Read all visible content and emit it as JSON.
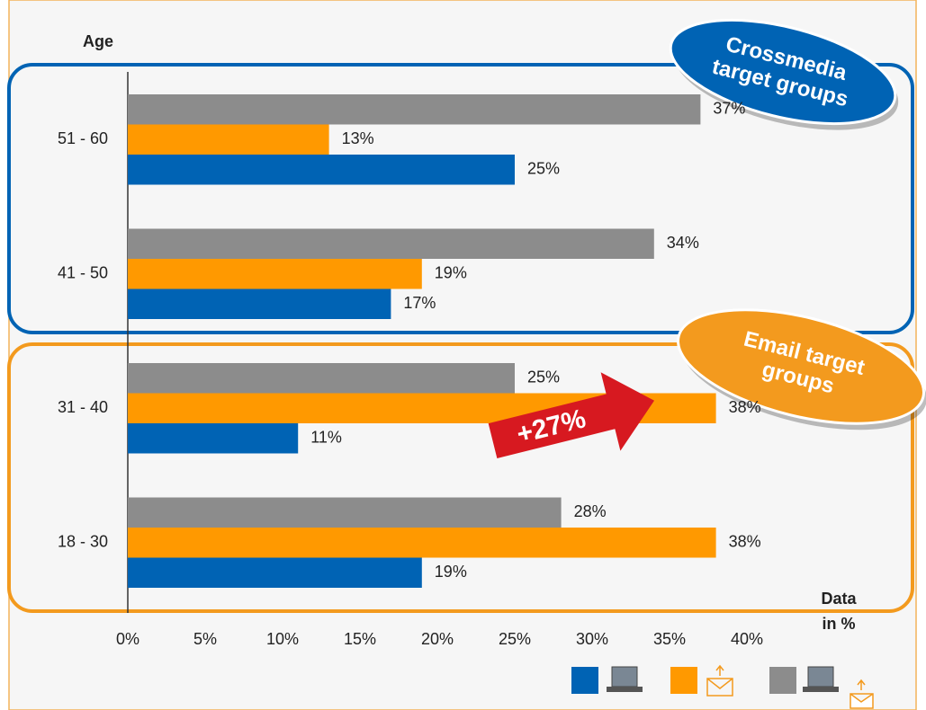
{
  "chart_data": {
    "type": "bar",
    "orientation": "horizontal",
    "ylabel": "Age",
    "xlabel_lines": [
      "Data",
      "in %"
    ],
    "categories": [
      "51 - 60",
      "41 - 50",
      "31 - 40",
      "18 - 30"
    ],
    "series": [
      {
        "color": "#8c8c8c",
        "values": [
          37,
          34,
          25,
          28
        ],
        "value_labels": [
          "37%",
          "34%",
          "25%",
          "28%"
        ]
      },
      {
        "color": "#ff9900",
        "values": [
          13,
          19,
          38,
          38
        ],
        "value_labels": [
          "13%",
          "19%",
          "38%",
          "38%"
        ]
      },
      {
        "color": "#0063b4",
        "values": [
          25,
          17,
          11,
          19
        ],
        "value_labels": [
          "25%",
          "17%",
          "11%",
          "19%"
        ]
      }
    ],
    "xlim": [
      0,
      40
    ],
    "xticks": [
      {
        "value": 0,
        "label": "0%"
      },
      {
        "value": 5,
        "label": "5%"
      },
      {
        "value": 10,
        "label": "10%"
      },
      {
        "value": 15,
        "label": "15%"
      },
      {
        "value": 20,
        "label": "20%"
      },
      {
        "value": 25,
        "label": "25%"
      },
      {
        "value": 30,
        "label": "30%"
      },
      {
        "value": 35,
        "label": "35%"
      },
      {
        "value": 40,
        "label": "40%"
      }
    ],
    "callouts": [
      {
        "lines": [
          "Crossmedia",
          "target groups"
        ],
        "color": "#0063b4"
      },
      {
        "lines": [
          "Email target",
          "groups"
        ],
        "color": "#f39a1e"
      }
    ],
    "arrow_label": "+27%"
  }
}
